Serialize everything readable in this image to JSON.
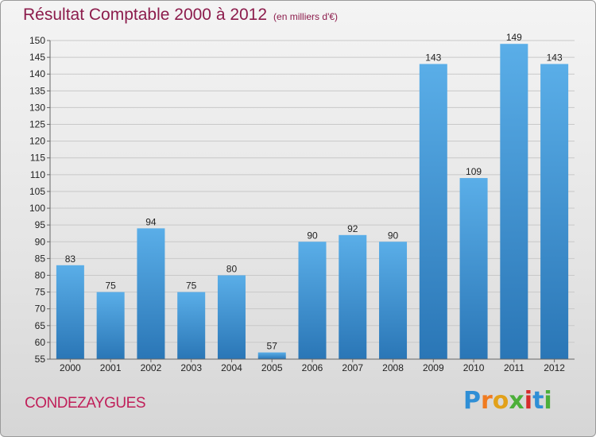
{
  "header": {
    "title": "Résultat Comptable 2000 à 2012",
    "subtitle": "(en milliers d'€)"
  },
  "footer": {
    "commune": "CONDEZAYGUES",
    "logo_letters": [
      "P",
      "r",
      "o",
      "x",
      "i",
      "t",
      "i"
    ]
  },
  "colors": {
    "title": "#8c1c4c",
    "commune": "#c0205a",
    "bar_top": "#5aaee8",
    "bar_bottom": "#2a76b6",
    "logo": [
      "#2f8fd6",
      "#f07b20",
      "#e2a11a",
      "#4caf3a",
      "#d62c2c",
      "#2f8fd6",
      "#4caf3a"
    ]
  },
  "chart_data": {
    "type": "bar",
    "categories": [
      "2000",
      "2001",
      "2002",
      "2003",
      "2004",
      "2005",
      "2006",
      "2007",
      "2008",
      "2009",
      "2010",
      "2011",
      "2012"
    ],
    "values": [
      83,
      75,
      94,
      75,
      80,
      57,
      90,
      92,
      90,
      143,
      109,
      149,
      143
    ],
    "ylim": [
      55,
      150
    ],
    "yticks": [
      55,
      60,
      65,
      70,
      75,
      80,
      85,
      90,
      95,
      100,
      105,
      110,
      115,
      120,
      125,
      130,
      135,
      140,
      145,
      150
    ],
    "grid": true
  }
}
